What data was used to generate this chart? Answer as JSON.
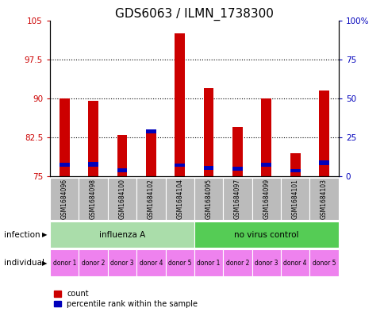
{
  "title": "GDS6063 / ILMN_1738300",
  "samples": [
    "GSM1684096",
    "GSM1684098",
    "GSM1684100",
    "GSM1684102",
    "GSM1684104",
    "GSM1684095",
    "GSM1684097",
    "GSM1684099",
    "GSM1684101",
    "GSM1684103"
  ],
  "red_tops": [
    90.0,
    89.5,
    83.0,
    84.0,
    102.5,
    92.0,
    84.5,
    90.0,
    79.5,
    91.5
  ],
  "blue_bottoms": [
    76.8,
    76.9,
    75.8,
    83.2,
    76.8,
    76.3,
    76.1,
    76.8,
    75.8,
    77.2
  ],
  "blue_heights": [
    0.8,
    0.8,
    0.7,
    0.8,
    0.7,
    0.7,
    0.8,
    0.8,
    0.6,
    0.9
  ],
  "ylim_left": [
    75,
    105
  ],
  "yleft_ticks": [
    75,
    82.5,
    90,
    97.5,
    105
  ],
  "yleft_labels": [
    "75",
    "82.5",
    "90",
    "97.5",
    "105"
  ],
  "yright_ticks": [
    0,
    25,
    50,
    75,
    100
  ],
  "yright_labels": [
    "0",
    "25",
    "50",
    "75",
    "100%"
  ],
  "bar_bottom": 75,
  "bar_width": 0.35,
  "infection_groups": [
    {
      "label": "influenza A",
      "start": 0,
      "end": 5,
      "color": "#aaddaa"
    },
    {
      "label": "no virus control",
      "start": 5,
      "end": 10,
      "color": "#55cc55"
    }
  ],
  "individual_labels": [
    "donor 1",
    "donor 2",
    "donor 3",
    "donor 4",
    "donor 5",
    "donor 1",
    "donor 2",
    "donor 3",
    "donor 4",
    "donor 5"
  ],
  "individual_color": "#EE82EE",
  "sample_box_color": "#BBBBBB",
  "red_color": "#CC0000",
  "blue_color": "#0000BB",
  "dotted_yvals": [
    82.5,
    90.0,
    97.5
  ],
  "legend_items": [
    {
      "label": "count",
      "color": "#CC0000"
    },
    {
      "label": "percentile rank within the sample",
      "color": "#0000BB"
    }
  ],
  "infection_label": "infection",
  "individual_label": "individual",
  "title_fontsize": 11,
  "tick_fontsize": 7.5
}
